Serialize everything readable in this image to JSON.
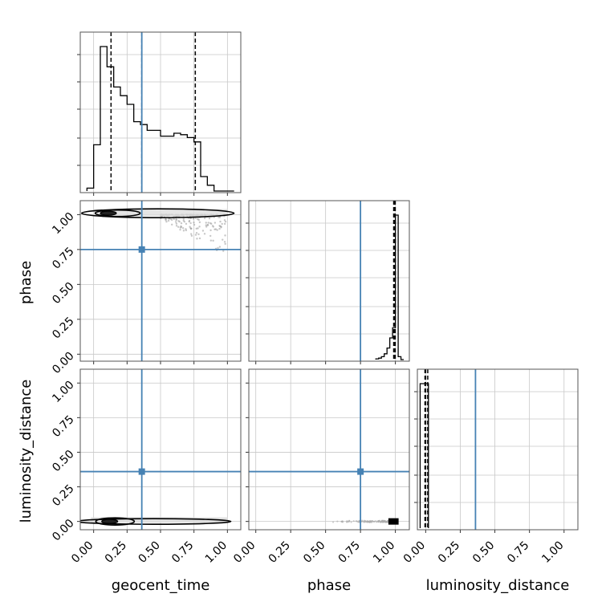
{
  "chart_data": {
    "type": "corner",
    "parameters": [
      {
        "name": "geocent_time",
        "label": "geocent_time",
        "injection": 0.36,
        "range": [
          -0.1,
          1.1
        ],
        "quantiles": [
          0.13,
          0.36,
          0.76
        ]
      },
      {
        "name": "phase",
        "label": "phase",
        "injection": 0.75,
        "range": [
          -0.05,
          1.1
        ],
        "quantiles": [
          0.988,
          0.995,
          0.999
        ]
      },
      {
        "name": "luminosity_distance",
        "label": "luminosity_distance",
        "injection": 0.36,
        "range": [
          -0.06,
          1.1
        ],
        "quantiles": [
          -0.005,
          0.0,
          0.015
        ]
      }
    ],
    "ticks": [
      0.0,
      0.25,
      0.5,
      0.75,
      1.0
    ],
    "tick_labels": [
      "0.00",
      "0.25",
      "0.50",
      "0.75",
      "1.00"
    ],
    "grid": true,
    "injection_color": "#4682b4",
    "histograms": {
      "geocent_time": {
        "bin_edges": [
          -0.05,
          0.0,
          0.05,
          0.1,
          0.15,
          0.2,
          0.25,
          0.3,
          0.35,
          0.4,
          0.45,
          0.5,
          0.55,
          0.6,
          0.65,
          0.7,
          0.75,
          0.8,
          0.85,
          0.9,
          0.95,
          1.0,
          1.05
        ],
        "counts": [
          0.02,
          0.32,
          1.0,
          0.86,
          0.72,
          0.66,
          0.6,
          0.48,
          0.46,
          0.42,
          0.42,
          0.38,
          0.38,
          0.4,
          0.39,
          0.37,
          0.34,
          0.1,
          0.04,
          0.0,
          0.0,
          0.0
        ]
      },
      "phase": {
        "bin_edges": [
          0.86,
          0.88,
          0.9,
          0.92,
          0.94,
          0.96,
          0.98,
          1.0,
          1.02,
          1.04,
          1.06
        ],
        "counts": [
          0.005,
          0.01,
          0.02,
          0.04,
          0.08,
          0.15,
          0.22,
          1.0,
          0.02,
          0.0
        ]
      },
      "luminosity_distance": {
        "bin_edges": [
          -0.04,
          -0.02,
          0.0,
          0.02
        ],
        "counts": [
          1.0,
          1.0,
          1.0
        ]
      }
    }
  }
}
